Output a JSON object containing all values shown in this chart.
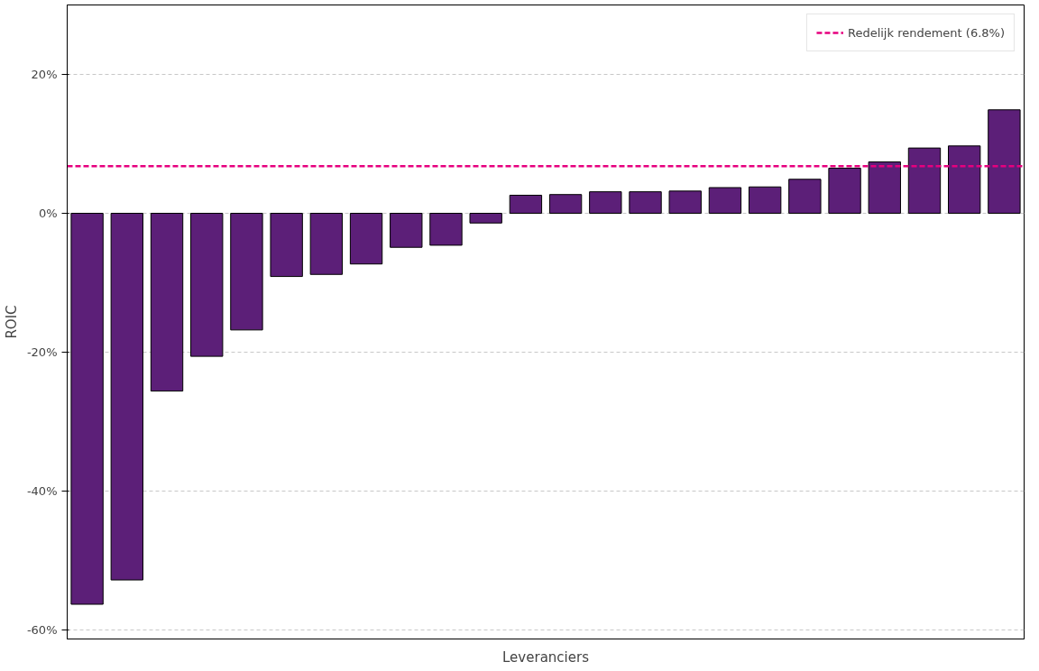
{
  "chart_data": {
    "type": "bar",
    "xlabel": "Leveranciers",
    "ylabel": "ROIC",
    "categories": [
      null,
      null,
      null,
      null,
      null,
      null,
      null,
      null,
      null,
      null,
      null,
      null,
      null,
      null,
      null,
      null,
      null,
      null,
      null,
      null,
      null,
      null,
      null,
      null
    ],
    "values": [
      -56.3,
      -52.8,
      -25.6,
      -20.6,
      -16.8,
      -9.1,
      -8.8,
      -7.3,
      -4.9,
      -4.6,
      -1.4,
      2.6,
      2.7,
      3.1,
      3.1,
      3.2,
      3.7,
      3.8,
      4.9,
      6.5,
      7.4,
      9.4,
      9.7,
      14.9
    ],
    "color": "#5c1f78",
    "ylim": [
      -61.3,
      30
    ],
    "yticks": [
      {
        "value": -60,
        "label": "-60%"
      },
      {
        "value": -40,
        "label": "-40%"
      },
      {
        "value": -20,
        "label": "-20%"
      },
      {
        "value": 0,
        "label": "0%"
      },
      {
        "value": 20,
        "label": "20%"
      }
    ],
    "ref_lines": [
      {
        "axis": "y",
        "value": 6.8,
        "label": "Redelijk rendement (6.8%)",
        "color": "#e6007e",
        "line_style": "dashed"
      }
    ],
    "grid": "y",
    "legend": "top right",
    "tick_labels": "y"
  }
}
